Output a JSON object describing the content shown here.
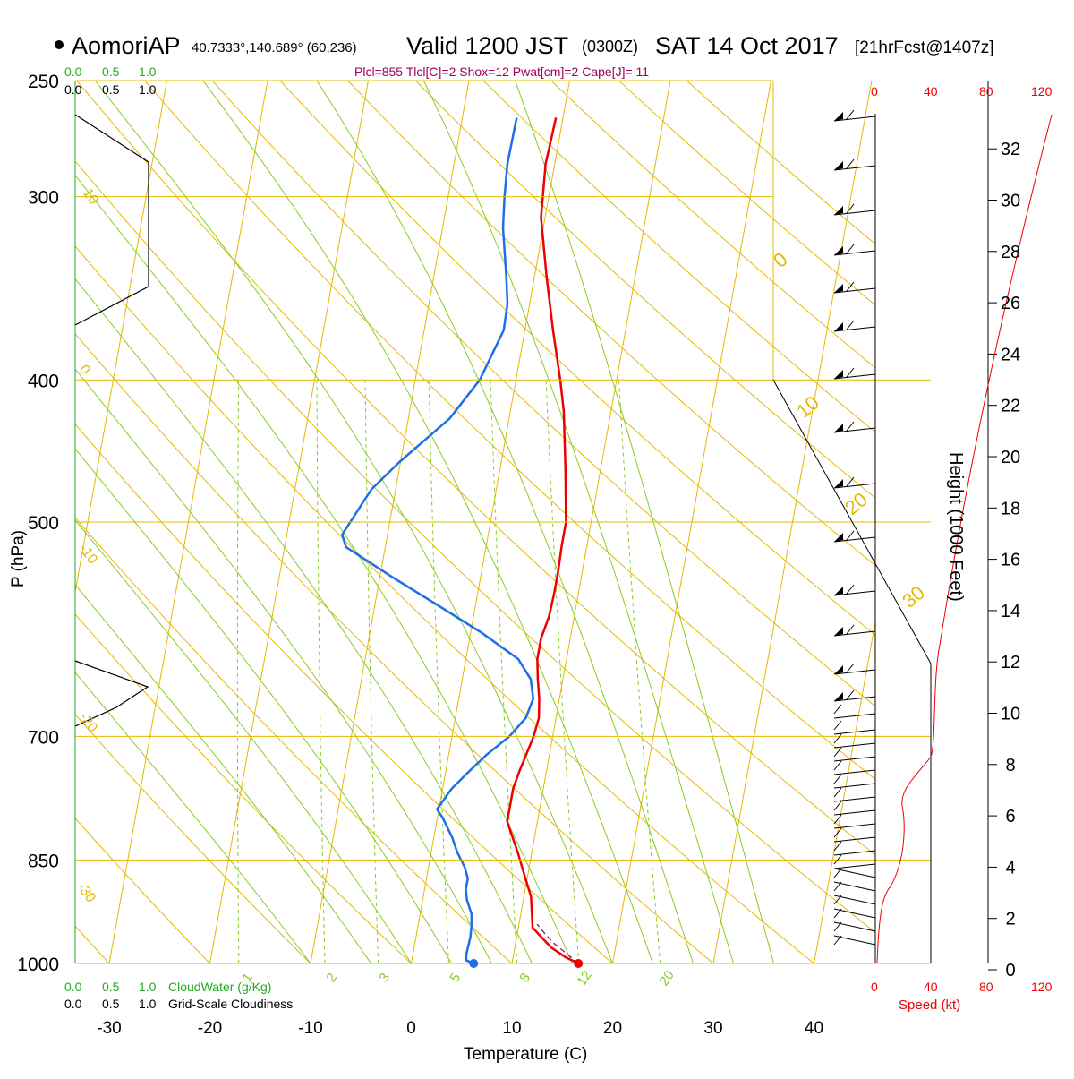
{
  "header": {
    "station": "AomoriAP",
    "coords": "40.7333°,140.689° (60,236)",
    "valid_main": "Valid 1200 JST",
    "valid_z": "(0300Z)",
    "valid_date": "SAT 14 Oct 2017",
    "forecast": "[21hrFcst@1407z]",
    "params": "Plcl=855 Tlcl[C]=2 Shox=12 Pwat[cm]=2 Cape[J]= 11"
  },
  "colors": {
    "isotherm": "#e6b800",
    "dry_adiabat": "#e6b800",
    "moist_adiabat": "#88cc22",
    "mixing_ratio": "#88cc22",
    "temperature": "#ee0000",
    "dewpoint": "#1e6fe6",
    "parcel": "#7a0070",
    "params_text": "#a0005a",
    "cloud_green": "#22aa22",
    "speed_red": "#ee0000"
  },
  "chart_data": {
    "type": "line",
    "title": "AomoriAP Valid 1200 JST (0300Z) SAT 14 Oct 2017",
    "xlabel": "Temperature (C)",
    "ylabel": "P (hPa)",
    "y2label": "Height (1000 Feet)",
    "xlim": [
      -30,
      46
    ],
    "pressure_ticks": [
      250,
      300,
      400,
      500,
      700,
      850,
      1000
    ],
    "pressure_tick_labels": [
      "250",
      "300",
      "400",
      "500",
      "700",
      "850",
      "1000"
    ],
    "temp_ticks": [
      -30,
      -20,
      -10,
      0,
      10,
      20,
      30,
      40
    ],
    "temp_tick_labels": [
      "-30",
      "-20",
      "-10",
      "0",
      "10",
      "20",
      "30",
      "40"
    ],
    "height_ticks": [
      0,
      2,
      4,
      6,
      8,
      10,
      12,
      14,
      16,
      18,
      20,
      22,
      24,
      26,
      28,
      30,
      32
    ],
    "height_tick_labels": [
      "0",
      "2",
      "4",
      "6",
      "8",
      "10",
      "12",
      "14",
      "16",
      "18",
      "20",
      "22",
      "24",
      "26",
      "28",
      "30",
      "32"
    ],
    "isotherm_labels": [
      "10",
      "0",
      "-10",
      "-20",
      "-30",
      "0",
      "10",
      "20",
      "30"
    ],
    "mixing_ratio_labels": [
      "1",
      "2",
      "3",
      "5",
      "8",
      "12",
      "20"
    ],
    "series": [
      {
        "name": "temperature",
        "points": [
          [
            16.6,
            1000
          ],
          [
            15.2,
            990
          ],
          [
            13.6,
            975
          ],
          [
            12.5,
            960
          ],
          [
            11.4,
            945
          ],
          [
            11.1,
            925
          ],
          [
            10.7,
            900
          ],
          [
            10,
            880
          ],
          [
            9.3,
            860
          ],
          [
            8.6,
            840
          ],
          [
            7.8,
            820
          ],
          [
            7,
            800
          ],
          [
            7,
            780
          ],
          [
            7,
            760
          ],
          [
            7.3,
            740
          ],
          [
            7.7,
            720
          ],
          [
            8.1,
            700
          ],
          [
            8.3,
            680
          ],
          [
            8,
            660
          ],
          [
            7.5,
            640
          ],
          [
            7.1,
            620
          ],
          [
            7.1,
            600
          ],
          [
            7.5,
            580
          ],
          [
            7.6,
            560
          ],
          [
            7.6,
            540
          ],
          [
            7.5,
            520
          ],
          [
            7.5,
            500
          ],
          [
            6.5,
            460
          ],
          [
            5.3,
            420
          ],
          [
            4.4,
            400
          ],
          [
            2.8,
            370
          ],
          [
            1.2,
            340
          ],
          [
            -0.4,
            310
          ],
          [
            -0.6,
            300
          ],
          [
            -0.9,
            285
          ],
          [
            -0.7,
            265
          ]
        ]
      },
      {
        "name": "dewpoint",
        "points": [
          [
            6.2,
            1000
          ],
          [
            5.4,
            995
          ],
          [
            5.3,
            985
          ],
          [
            5.4,
            960
          ],
          [
            5.3,
            940
          ],
          [
            5.1,
            925
          ],
          [
            4.4,
            905
          ],
          [
            4.1,
            890
          ],
          [
            4.1,
            875
          ],
          [
            3.6,
            860
          ],
          [
            2.6,
            840
          ],
          [
            1.8,
            820
          ],
          [
            0.5,
            795
          ],
          [
            -0.2,
            785
          ],
          [
            0.9,
            760
          ],
          [
            2.3,
            740
          ],
          [
            3.8,
            720
          ],
          [
            5.7,
            700
          ],
          [
            7,
            680
          ],
          [
            7.4,
            660
          ],
          [
            6.8,
            640
          ],
          [
            5.2,
            620
          ],
          [
            1.1,
            595
          ],
          [
            -3.7,
            570
          ],
          [
            -8.8,
            545
          ],
          [
            -13.9,
            520
          ],
          [
            -14.5,
            510
          ],
          [
            -12.4,
            475
          ],
          [
            -10.1,
            455
          ],
          [
            -5.9,
            425
          ],
          [
            -3.6,
            400
          ],
          [
            -2.1,
            370
          ],
          [
            -2.2,
            355
          ],
          [
            -2.8,
            340
          ],
          [
            -4,
            315
          ],
          [
            -4.4,
            300
          ],
          [
            -4.7,
            285
          ],
          [
            -4.6,
            265
          ]
        ]
      },
      {
        "name": "parcel",
        "points": [
          [
            16.6,
            1000
          ],
          [
            15.3,
            985
          ],
          [
            13.9,
            970
          ],
          [
            12.8,
            955
          ],
          [
            11.8,
            940
          ]
        ]
      }
    ],
    "hodo_speed_ticks": [
      "0",
      "40",
      "80",
      "120"
    ],
    "cloud_ticks": [
      "0.0",
      "0.5",
      "1.0"
    ],
    "cloud_water_label": "CloudWater (g/Kg)",
    "cloudiness_label": "Grid-Scale Cloudiness",
    "speed_label": "Speed (kt)"
  }
}
